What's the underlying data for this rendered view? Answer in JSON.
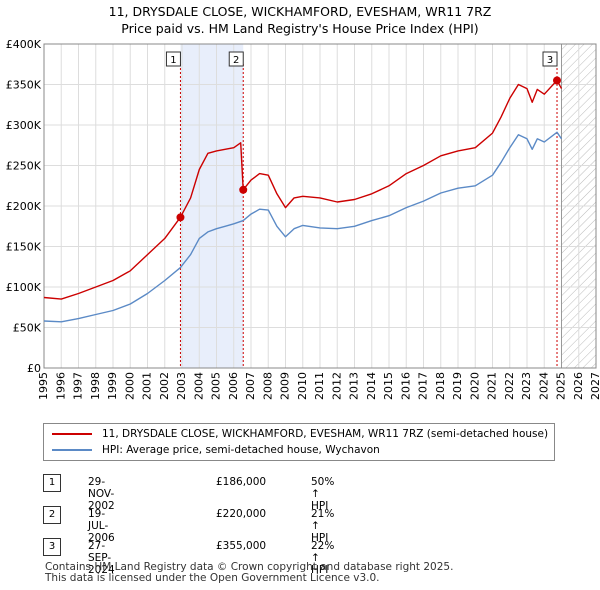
{
  "header": {
    "title": "11, DRYSDALE CLOSE, WICKHAMFORD, EVESHAM, WR11 7RZ",
    "subtitle": "Price paid vs. HM Land Registry's House Price Index (HPI)"
  },
  "legend": {
    "property_label": "11, DRYSDALE CLOSE, WICKHAMFORD, EVESHAM, WR11 7RZ (semi-detached house)",
    "hpi_label": "HPI: Average price, semi-detached house, Wychavon"
  },
  "sales": [
    {
      "num": "1",
      "date": "29-NOV-2002",
      "price": "£186,000",
      "hpi": "50% ↑ HPI"
    },
    {
      "num": "2",
      "date": "19-JUL-2006",
      "price": "£220,000",
      "hpi": "21% ↑ HPI"
    },
    {
      "num": "3",
      "date": "27-SEP-2024",
      "price": "£355,000",
      "hpi": "22% ↑ HPI"
    }
  ],
  "footer": {
    "line1": "Contains HM Land Registry data © Crown copyright and database right 2025.",
    "line2": "This data is licensed under the Open Government Licence v3.0."
  },
  "colors": {
    "property": "#cc0000",
    "hpi": "#5b8ac6",
    "shade": "#e8eefb",
    "grid": "#dddddd"
  },
  "chart_data": {
    "type": "line",
    "title": "11, DRYSDALE CLOSE, WICKHAMFORD, EVESHAM, WR11 7RZ",
    "subtitle": "Price paid vs. HM Land Registry's House Price Index (HPI)",
    "xlim": [
      1995,
      2027
    ],
    "ylim": [
      0,
      400000
    ],
    "x_ticks": [
      1995,
      1996,
      1997,
      1998,
      1999,
      2000,
      2001,
      2002,
      2003,
      2004,
      2005,
      2006,
      2007,
      2008,
      2009,
      2010,
      2011,
      2012,
      2013,
      2014,
      2015,
      2016,
      2017,
      2018,
      2019,
      2020,
      2021,
      2022,
      2023,
      2024,
      2025,
      2026,
      2027
    ],
    "y_ticks": [
      0,
      50000,
      100000,
      150000,
      200000,
      250000,
      300000,
      350000,
      400000
    ],
    "y_tick_labels": [
      "£0",
      "£50K",
      "£100K",
      "£150K",
      "£200K",
      "£250K",
      "£300K",
      "£350K",
      "£400K"
    ],
    "grid": true,
    "shaded_region": {
      "from": 2002.91,
      "to": 2006.55
    },
    "forecast_from": 2025.0,
    "series": [
      {
        "name": "11, DRYSDALE CLOSE, WICKHAMFORD, EVESHAM, WR11 7RZ (semi-detached house)",
        "x": [
          1995,
          1996,
          1997,
          1998,
          1999,
          2000,
          2001,
          2002,
          2002.91,
          2003.5,
          2004,
          2004.5,
          2005,
          2005.5,
          2006,
          2006.4,
          2006.55,
          2007,
          2007.5,
          2008,
          2008.5,
          2009,
          2009.5,
          2010,
          2011,
          2012,
          2013,
          2014,
          2015,
          2016,
          2017,
          2018,
          2019,
          2020,
          2021,
          2021.5,
          2022,
          2022.5,
          2023,
          2023.3,
          2023.6,
          2024,
          2024.74,
          2025
        ],
        "values": [
          87000,
          85000,
          92000,
          100000,
          108000,
          120000,
          140000,
          160000,
          186000,
          210000,
          245000,
          265000,
          268000,
          270000,
          272000,
          278000,
          220000,
          232000,
          240000,
          238000,
          215000,
          198000,
          210000,
          212000,
          210000,
          205000,
          208000,
          215000,
          225000,
          240000,
          250000,
          262000,
          268000,
          272000,
          290000,
          310000,
          333000,
          350000,
          345000,
          328000,
          344000,
          338000,
          355000,
          345000
        ]
      },
      {
        "name": "HPI: Average price, semi-detached house, Wychavon",
        "x": [
          1995,
          1996,
          1997,
          1998,
          1999,
          2000,
          2001,
          2002,
          2002.91,
          2003.5,
          2004,
          2004.5,
          2005,
          2005.5,
          2006,
          2006.55,
          2007,
          2007.5,
          2008,
          2008.5,
          2009,
          2009.5,
          2010,
          2011,
          2012,
          2013,
          2014,
          2015,
          2016,
          2017,
          2018,
          2019,
          2020,
          2021,
          2021.5,
          2022,
          2022.5,
          2023,
          2023.3,
          2023.6,
          2024,
          2024.74,
          2025
        ],
        "values": [
          58000,
          57000,
          61000,
          66000,
          71000,
          79000,
          92000,
          108000,
          124000,
          140000,
          160000,
          168000,
          172000,
          175000,
          178000,
          182000,
          190000,
          196000,
          195000,
          175000,
          162000,
          172000,
          176000,
          173000,
          172000,
          175000,
          182000,
          188000,
          198000,
          206000,
          216000,
          222000,
          225000,
          238000,
          254000,
          272000,
          288000,
          283000,
          270000,
          283000,
          279000,
          291000,
          283000
        ]
      }
    ],
    "annotations": [
      {
        "label": "1",
        "x": 2002.91,
        "value": 186000
      },
      {
        "label": "2",
        "x": 2006.55,
        "value": 220000
      },
      {
        "label": "3",
        "x": 2024.74,
        "value": 355000
      }
    ]
  }
}
